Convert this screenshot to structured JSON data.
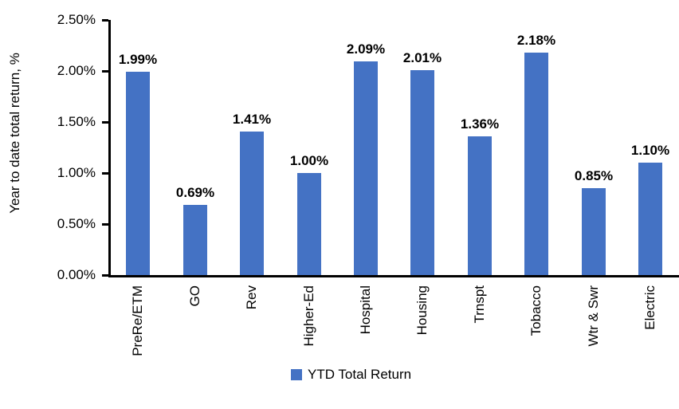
{
  "chart_data": {
    "type": "bar",
    "title": "",
    "categories": [
      "PreRe/ETM",
      "GO",
      "Rev",
      "Higher-Ed",
      "Hospital",
      "Housing",
      "Trnspt",
      "Tobacco",
      "Wtr & Swr",
      "Electric"
    ],
    "values": [
      1.99,
      0.69,
      1.41,
      1.0,
      2.09,
      2.01,
      1.36,
      2.18,
      0.85,
      1.1
    ],
    "value_labels": [
      "1.99%",
      "0.69%",
      "1.41%",
      "1.00%",
      "2.09%",
      "2.01%",
      "1.36%",
      "2.18%",
      "0.85%",
      "1.10%"
    ],
    "ylabel": "Year to date total return, %",
    "xlabel": "",
    "ylim": [
      0,
      2.5
    ],
    "ytick_step": 0.5,
    "ytick_labels": [
      "0.00%",
      "0.50%",
      "1.00%",
      "1.50%",
      "2.00%",
      "2.50%"
    ],
    "legend": [
      "YTD Total Return"
    ],
    "legend_position": "bottom",
    "grid": false,
    "colors": {
      "bar": "#4472C4",
      "axis": "#000000",
      "text": "#000000",
      "background": "#FFFFFF"
    }
  }
}
